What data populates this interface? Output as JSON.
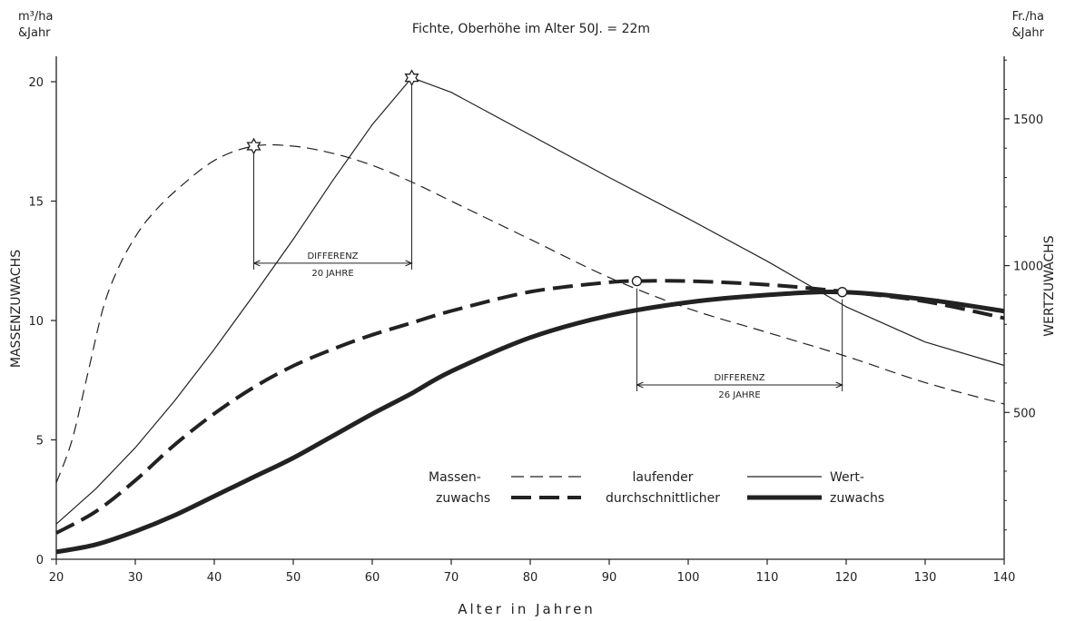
{
  "title": "Fichte, Oberhöhe im Alter 50J. = 22m",
  "unit_left_line1": "m³/ha",
  "unit_left_line2": "&Jahr",
  "unit_right_line1": "Fr./ha",
  "unit_right_line2": "&Jahr",
  "ylabel_left": "MASSENZUWACHS",
  "ylabel_right": "WERTZUWACHS",
  "xlabel": "Alter in Jahren",
  "legend": {
    "col1_line1": "Massen-",
    "col1_line2": "zuwachs",
    "mid_line1": "laufender",
    "mid_line2": "durchschnittlicher",
    "col3_line1": "Wert-",
    "col3_line2": "zuwachs"
  },
  "annotations": [
    {
      "line1": "DIFFERENZ",
      "line2": "20 JAHRE",
      "x_from": 45,
      "x_to": 65,
      "y": 12.4
    },
    {
      "line1": "DIFFERENZ",
      "line2": "26 JAHRE",
      "x_from": 93.5,
      "x_to": 119.5,
      "y": 7.3
    }
  ],
  "chart_data": {
    "type": "line",
    "title": "Fichte, Oberhöhe im Alter 50J. = 22m",
    "xlabel": "Alter in Jahren",
    "ylabel": "MASSENZUWACHS",
    "ylabel_right": "WERTZUWACHS",
    "xlim": [
      20,
      140
    ],
    "ylim": [
      0,
      20
    ],
    "ylim_right": [
      0,
      1750
    ],
    "x_ticks": [
      20,
      30,
      40,
      50,
      60,
      70,
      80,
      90,
      100,
      110,
      120,
      130,
      140
    ],
    "y_ticks": [
      0,
      5,
      10,
      15,
      20
    ],
    "y_ticks_right": [
      500,
      1000,
      1500
    ],
    "grid": false,
    "series": [
      {
        "key": "mass_current",
        "axis": "left",
        "style": "thin-dashed",
        "x": [
          20,
          22,
          24,
          26,
          28,
          30,
          32,
          35,
          40,
          45,
          50,
          55,
          60,
          65,
          70,
          80,
          90,
          100,
          110,
          120,
          130,
          140
        ],
        "y": [
          3.2,
          5.0,
          7.8,
          10.6,
          12.3,
          13.5,
          14.4,
          15.4,
          16.7,
          17.3,
          17.3,
          17.0,
          16.5,
          15.8,
          15.0,
          13.4,
          11.8,
          10.5,
          9.5,
          8.5,
          7.4,
          6.5
        ],
        "markers": [
          {
            "x": 45,
            "y": 17.3,
            "shape": "star"
          }
        ]
      },
      {
        "key": "mass_mean",
        "axis": "left",
        "style": "thick-dashed",
        "x": [
          20,
          25,
          30,
          35,
          40,
          45,
          50,
          55,
          60,
          65,
          70,
          80,
          90,
          93.5,
          100,
          110,
          120,
          130,
          140
        ],
        "y": [
          1.1,
          2.0,
          3.3,
          4.8,
          6.1,
          7.2,
          8.1,
          8.8,
          9.4,
          9.9,
          10.4,
          11.2,
          11.6,
          11.65,
          11.65,
          11.5,
          11.2,
          10.8,
          10.1
        ],
        "markers": [
          {
            "x": 93.5,
            "y": 11.65,
            "shape": "circle"
          }
        ]
      },
      {
        "key": "value_current",
        "axis": "right",
        "style": "thin-solid",
        "x": [
          20,
          25,
          30,
          35,
          40,
          45,
          50,
          55,
          60,
          65,
          70,
          80,
          90,
          100,
          110,
          120,
          130,
          140
        ],
        "y": [
          120,
          240,
          380,
          540,
          715,
          900,
          1090,
          1290,
          1480,
          1640,
          1590,
          1445,
          1300,
          1160,
          1015,
          860,
          740,
          660
        ],
        "markers": [
          {
            "x": 65,
            "y": 1640,
            "shape": "star"
          }
        ]
      },
      {
        "key": "value_mean",
        "axis": "right",
        "style": "thick-solid",
        "x": [
          20,
          25,
          30,
          35,
          40,
          45,
          50,
          55,
          60,
          65,
          70,
          80,
          90,
          100,
          110,
          119.5,
          130,
          140
        ],
        "y": [
          25,
          50,
          95,
          150,
          215,
          280,
          345,
          420,
          495,
          565,
          640,
          755,
          830,
          875,
          900,
          910,
          885,
          845
        ],
        "markers": [
          {
            "x": 119.5,
            "y": 910,
            "shape": "circle"
          }
        ]
      }
    ]
  }
}
